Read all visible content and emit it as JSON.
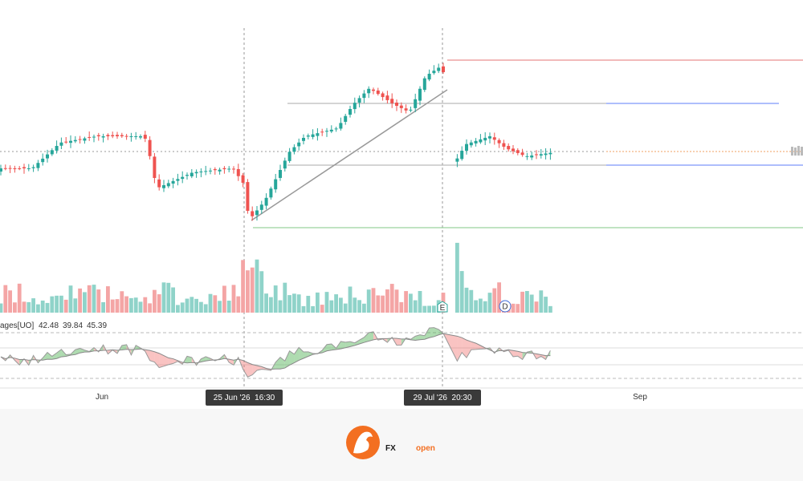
{
  "indicator": {
    "label": "ages[UO]",
    "values": [
      42.48,
      39.84,
      45.39
    ]
  },
  "time_axis": {
    "labels": [
      "Jun",
      "Sep"
    ],
    "crosshair_labels": [
      "25 Jun '26  16:30",
      "29 Jul '26  20:30"
    ]
  },
  "markers": [
    "E",
    "D"
  ],
  "logo": {
    "fx": "FX",
    "open": "open"
  }
}
